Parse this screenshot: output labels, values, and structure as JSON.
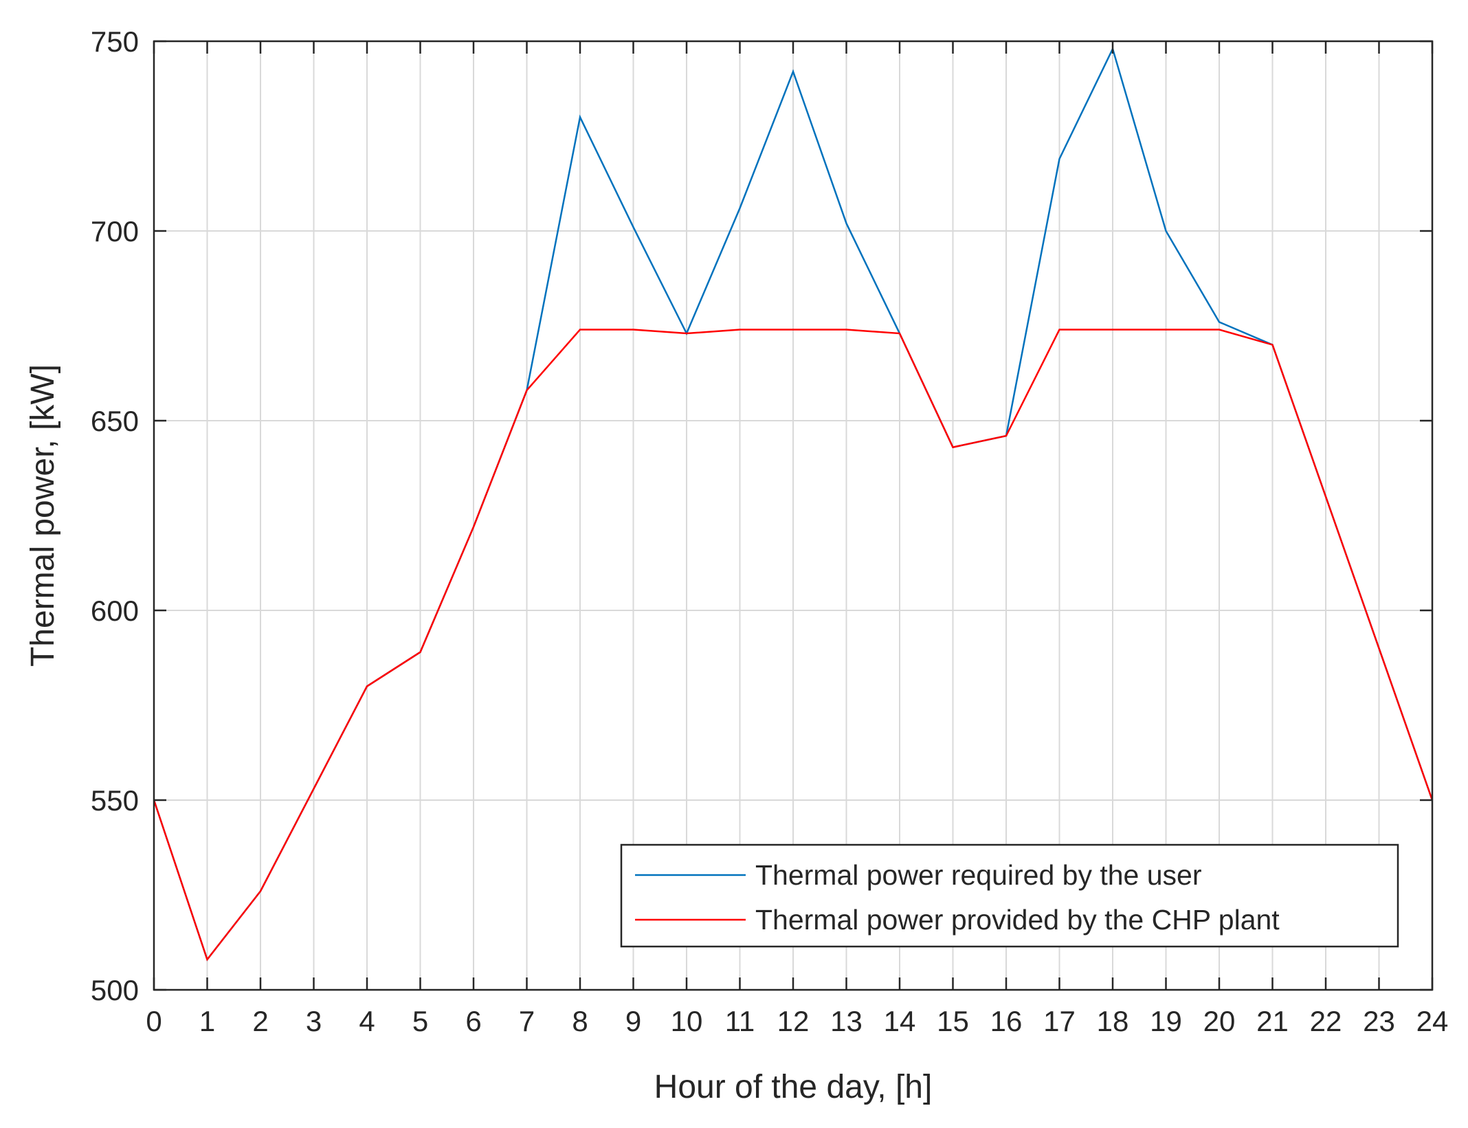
{
  "chart_data": {
    "type": "line",
    "title": "",
    "xlabel": "Hour of the day, [h]",
    "ylabel": "Thermal power, [kW]",
    "xlim": [
      0,
      24
    ],
    "ylim": [
      500,
      750
    ],
    "xticks": [
      0,
      1,
      2,
      3,
      4,
      5,
      6,
      7,
      8,
      9,
      10,
      11,
      12,
      13,
      14,
      15,
      16,
      17,
      18,
      19,
      20,
      21,
      22,
      23,
      24
    ],
    "yticks": [
      500,
      550,
      600,
      650,
      700,
      750
    ],
    "grid": true,
    "legend_position": "bottom-right",
    "x": [
      0,
      1,
      2,
      3,
      4,
      5,
      6,
      7,
      8,
      9,
      10,
      11,
      12,
      13,
      14,
      15,
      16,
      17,
      18,
      19,
      20,
      21,
      22,
      23,
      24
    ],
    "series": [
      {
        "name": "Thermal power required by the user",
        "color": "#0072BD",
        "values": [
          550,
          508,
          526,
          553,
          580,
          589,
          622,
          658,
          730,
          701,
          673,
          706,
          742,
          702,
          673,
          643,
          646,
          719,
          748,
          700,
          676,
          670,
          630,
          590,
          550
        ]
      },
      {
        "name": "Thermal power provided by the CHP plant",
        "color": "#FF0000",
        "values": [
          550,
          508,
          526,
          553,
          580,
          589,
          622,
          658,
          674,
          674,
          673,
          674,
          674,
          674,
          673,
          643,
          646,
          674,
          674,
          674,
          674,
          670,
          630,
          590,
          550
        ]
      }
    ]
  }
}
